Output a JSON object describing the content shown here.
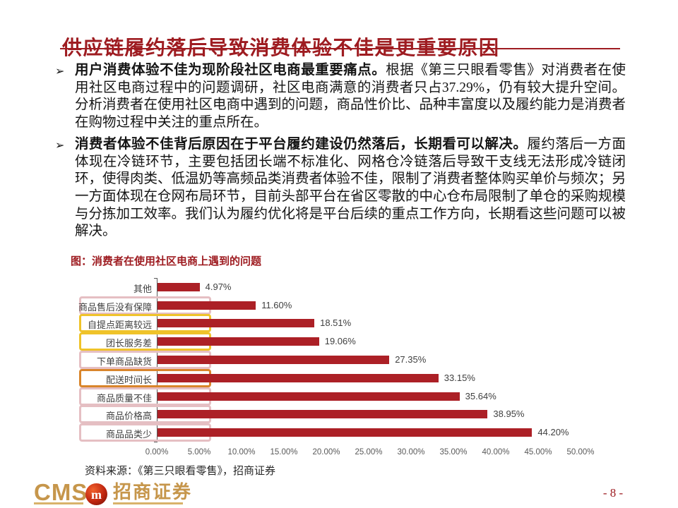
{
  "slide": {
    "title": "供应链履约落后导致消费体验不佳是更重要原因",
    "bullets": [
      {
        "marker": "➢",
        "lead": "用户消费体验不佳为现阶段社区电商最重要痛点。",
        "body": "根据《第三只眼看零售》对消费者在使用社区电商过程中的问题调研，社区电商满意的消费者只占37.29%，仍有较大提升空间。分析消费者在使用社区电商中遇到的问题，商品性价比、品种丰富度以及履约能力是消费者在购物过程中关注的重点所在。"
      },
      {
        "marker": "➢",
        "lead": "消费者体验不佳背后原因在于平台履约建设仍然落后，长期看可以解决。",
        "body": "履约落后一方面体现在冷链环节，主要包括团长端不标准化、网格仓冷链落后导致干支线无法形成冷链闭环，使得肉类、低温奶等高频品类消费者体验不佳，限制了消费者整体购买单价与频次；另一方面体现在仓网布局环节，目前头部平台在省区零散的中心仓布局限制了单仓的采购规模与分拣加工效率。我们认为履约优化将是平台后续的重点工作方向，长期看这些问题可以被解决。"
      }
    ],
    "figure_label": "图：消费者在使用社区电商上遇到的问题",
    "source_note": "资料来源：《第三只眼看零售》，招商证券",
    "footer": {
      "logo_cms": "CMS",
      "logo_medallion_glyph": "m",
      "logo_cn": "招商证券",
      "page_number": "- 8 -"
    }
  },
  "colors": {
    "accent_red": "#9E1C21",
    "bar_red": "#AC2026",
    "gold": "#C6964B",
    "pink_box": "#E5BFC3",
    "yellow_box": "#EFC32A",
    "orange_box": "#D9852B"
  },
  "chart_data": {
    "type": "bar",
    "orientation": "horizontal",
    "title": "图：消费者在使用社区电商上遇到的问题",
    "categories": [
      "其他",
      "商品售后没有保障",
      "自提点距离较远",
      "团长服务差",
      "下单商品缺货",
      "配送时间长",
      "商品质量不佳",
      "商品价格高",
      "商品品类少"
    ],
    "values": [
      4.97,
      11.6,
      18.51,
      19.06,
      27.35,
      33.15,
      35.64,
      38.95,
      44.2
    ],
    "value_labels": [
      "4.97%",
      "11.60%",
      "18.51%",
      "19.06%",
      "27.35%",
      "33.15%",
      "35.64%",
      "38.95%",
      "44.20%"
    ],
    "highlight_boxes": [
      null,
      "pink",
      "yellow",
      "yellow",
      "pink",
      "orange",
      "pink",
      "pink",
      "pink"
    ],
    "highlight_colors": {
      "pink": "#E5BFC3",
      "yellow": "#EFC32A",
      "orange": "#D9852B"
    },
    "bar_color": "#AC2026",
    "x_ticks": [
      "0.00%",
      "5.00%",
      "10.00%",
      "15.00%",
      "20.00%",
      "25.00%",
      "30.00%",
      "35.00%",
      "40.00%",
      "45.00%",
      "50.00%"
    ],
    "xlim": [
      0,
      50
    ],
    "xlabel": "",
    "ylabel": "",
    "grid": false,
    "legend": false
  }
}
